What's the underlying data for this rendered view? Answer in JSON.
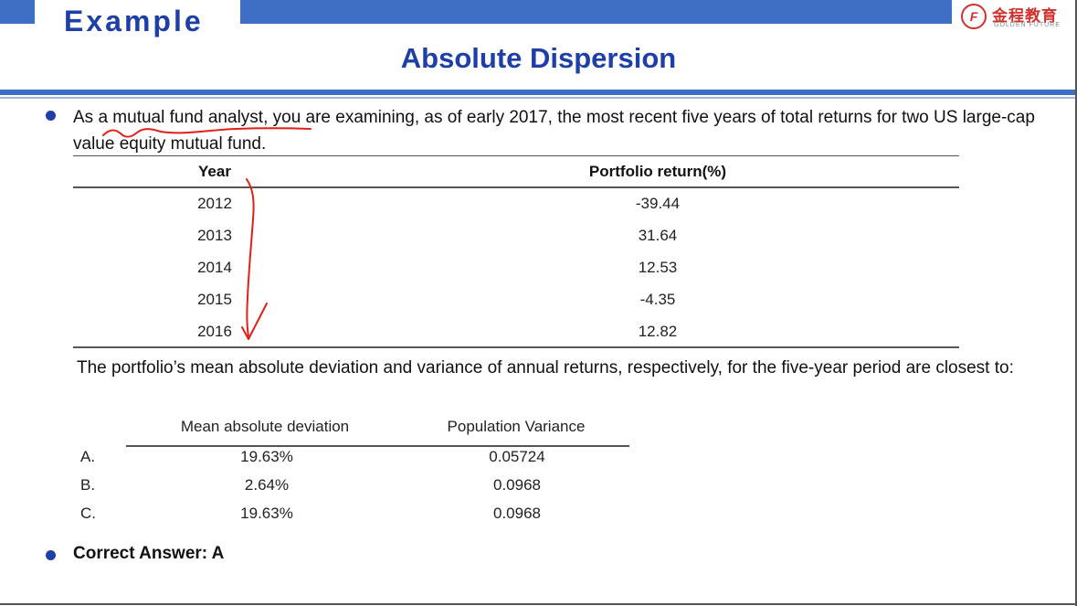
{
  "header": {
    "section_label": "Example",
    "title": "Absolute Dispersion",
    "logo": {
      "chinese": "金程教育",
      "english": "GOLDEN FUTURE",
      "mark": "F"
    }
  },
  "question": {
    "text": "As a mutual fund analyst, you are examining, as of early 2017, the most recent five years of total returns for two US large-cap value equity mutual fund."
  },
  "returns_table": {
    "headers": [
      "Year",
      "Portfolio return(%)"
    ],
    "rows": [
      {
        "year": "2012",
        "return": "-39.44"
      },
      {
        "year": "2013",
        "return": "31.64"
      },
      {
        "year": "2014",
        "return": "12.53"
      },
      {
        "year": "2015",
        "return": "-4.35"
      },
      {
        "year": "2016",
        "return": "12.82"
      }
    ]
  },
  "prompt": {
    "text": "The portfolio’s mean absolute deviation and variance of annual returns, respectively, for the five-year period are closest to:"
  },
  "options_table": {
    "headers": [
      "Mean absolute deviation",
      "Population Variance"
    ],
    "rows": [
      {
        "letter": "A.",
        "mad": "19.63%",
        "variance": "0.05724"
      },
      {
        "letter": "B.",
        "mad": "2.64%",
        "variance": "0.0968"
      },
      {
        "letter": "C.",
        "mad": "19.63%",
        "variance": "0.0968"
      }
    ]
  },
  "answer": {
    "text": "Correct Answer: A"
  },
  "colors": {
    "accent_blue": "#3d6fc4",
    "title_blue": "#1f3fa8",
    "annotation_red": "#e0201a"
  }
}
